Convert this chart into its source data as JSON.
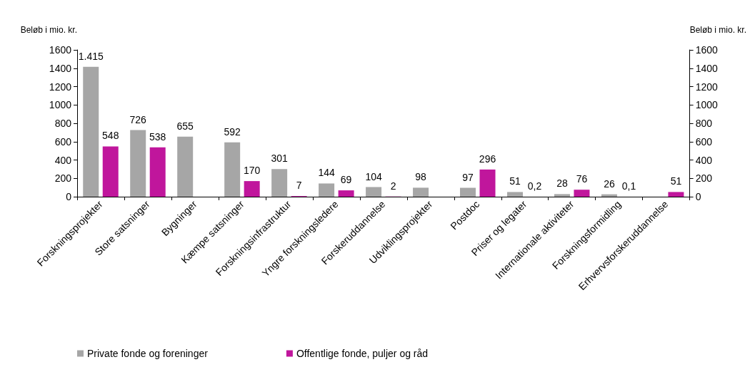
{
  "chart_data": {
    "type": "bar",
    "ylabel": "Beløb i mio. kr.",
    "y2label": "Beløb i mio. kr.",
    "categories": [
      "Forskningsprojekter",
      "Store satsninger",
      "Bygninger",
      "Kæmpe satsninger",
      "Forskningsinfrastruktur",
      "Yngre forskningsledere",
      "Forskeruddannelse",
      "Udviklingsprojekter",
      "Postdoc",
      "Priser og legater",
      "Internationale aktiviteter",
      "Forskningsformidling",
      "Erhvervsforskeruddannelse"
    ],
    "series": [
      {
        "name": "Private fonde og foreninger",
        "color": "#a6a6a6",
        "values": [
          1415,
          726,
          655,
          592,
          301,
          144,
          104,
          98,
          97,
          51,
          28,
          26,
          null
        ],
        "value_labels": [
          "1.415",
          "726",
          "655",
          "592",
          "301",
          "144",
          "104",
          "98",
          "97",
          "51",
          "28",
          "26",
          null
        ]
      },
      {
        "name": "Offentlige fonde, puljer og råd",
        "color": "#c0169c",
        "values": [
          548,
          538,
          null,
          170,
          7,
          69,
          2,
          null,
          296,
          0.2,
          76,
          0.1,
          51
        ],
        "value_labels": [
          "548",
          "538",
          null,
          "170",
          "7",
          "69",
          "2",
          null,
          "296",
          "0,2",
          "76",
          "0,1",
          "51"
        ]
      }
    ],
    "ylim": [
      0,
      1600
    ],
    "yticks": [
      0,
      200,
      400,
      600,
      800,
      1000,
      1200,
      1400,
      1600
    ],
    "y2lim": [
      0,
      1600
    ],
    "y2ticks": [
      0,
      200,
      400,
      600,
      800,
      1000,
      1200,
      1400,
      1600
    ],
    "grid": false,
    "legend": "bottom left"
  }
}
